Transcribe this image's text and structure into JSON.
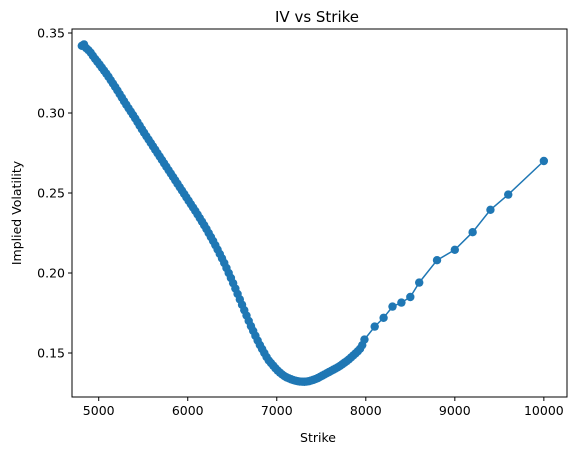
{
  "chart_data": {
    "type": "line",
    "title": "IV vs Strike",
    "xlabel": "Strike",
    "ylabel": "Implied Volatility",
    "xlim": [
      4700,
      10260
    ],
    "ylim": [
      0.1225,
      0.3525
    ],
    "xticks": [
      5000,
      6000,
      7000,
      8000,
      9000,
      10000
    ],
    "yticks": [
      0.15,
      0.2,
      0.25,
      0.3,
      0.35
    ],
    "xtick_labels": [
      "5000",
      "6000",
      "7000",
      "8000",
      "9000",
      "10000"
    ],
    "ytick_labels": [
      "0.15",
      "0.20",
      "0.25",
      "0.30",
      "0.35"
    ],
    "grid": false,
    "marker": "o",
    "series": [
      {
        "color": "#1f77b4",
        "keypoints": {
          "x": [
            4810,
            4830,
            4850,
            4900,
            4950,
            5000,
            5100,
            5200,
            5300,
            5400,
            5500,
            5600,
            5700,
            5800,
            5900,
            6000,
            6100,
            6200,
            6300,
            6400,
            6500,
            6600,
            6700,
            6800,
            6900,
            7000,
            7050,
            7100,
            7150,
            7200,
            7250,
            7300,
            7350,
            7400,
            7450,
            7500,
            7550,
            7600,
            7650,
            7700,
            7750,
            7800,
            7850,
            7900,
            7950,
            8000,
            8100,
            8200,
            8300,
            8400,
            8500,
            8600,
            8800,
            9000,
            9200,
            9400,
            9600,
            10000
          ],
          "y": [
            0.342,
            0.3435,
            0.341,
            0.3385,
            0.3345,
            0.331,
            0.3235,
            0.315,
            0.306,
            0.2975,
            0.2885,
            0.28,
            0.2715,
            0.263,
            0.2545,
            0.246,
            0.2375,
            0.2285,
            0.2185,
            0.2075,
            0.195,
            0.1815,
            0.168,
            0.156,
            0.146,
            0.1395,
            0.137,
            0.135,
            0.1338,
            0.1328,
            0.1322,
            0.132,
            0.1322,
            0.133,
            0.134,
            0.1355,
            0.137,
            0.1385,
            0.14,
            0.1415,
            0.1435,
            0.1455,
            0.148,
            0.1505,
            0.1535,
            0.1605,
            0.1665,
            0.172,
            0.179,
            0.1815,
            0.185,
            0.194,
            0.208,
            0.2145,
            0.2255,
            0.2395,
            0.249,
            0.27
          ]
        },
        "dense_range": [
          4810,
          8000
        ],
        "dense_step": 25,
        "sparse_x": [
          8100,
          8200,
          8300,
          8400,
          8500,
          8600,
          8800,
          9000,
          9200,
          9400,
          9600,
          10000
        ]
      }
    ]
  }
}
